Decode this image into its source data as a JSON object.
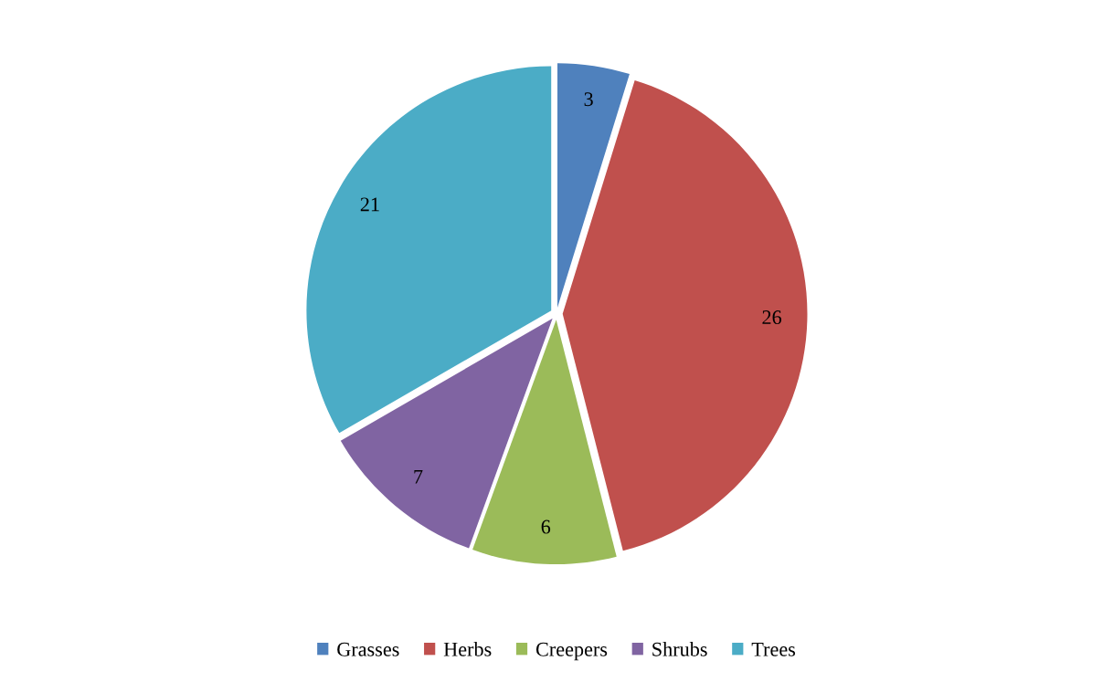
{
  "chart_data": {
    "type": "pie",
    "categories": [
      "Grasses",
      "Herbs",
      "Creepers",
      "Shrubs",
      "Trees"
    ],
    "values": [
      3,
      26,
      6,
      7,
      21
    ],
    "colors": [
      "#4f81bd",
      "#c0504d",
      "#9bbb59",
      "#8064a2",
      "#4bacc6"
    ],
    "data_labels": true,
    "legend": "bottom"
  }
}
